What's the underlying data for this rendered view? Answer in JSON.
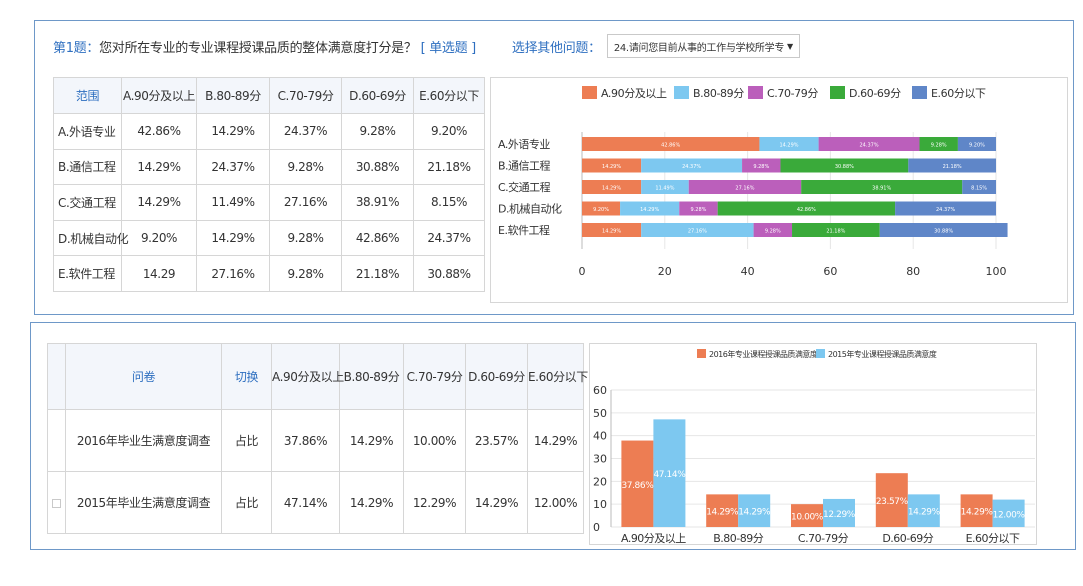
{
  "question": {
    "number": "第1题：",
    "text": "您对所在专业的专业课程授课品质的整体满意度打分是？",
    "type": "[ 单选题 ]",
    "pick_label": "选择其他问题：",
    "selected_question": "24.请问您目前从事的工作与学校所学专",
    "select_caret": "▼"
  },
  "table1": {
    "headers": [
      "范围",
      "A.90分及以上",
      "B.80-89分",
      "C.70-79分",
      "D.60-69分",
      "E.60分以下"
    ],
    "rows": [
      [
        "A.外语专业",
        "42.86%",
        "14.29%",
        "24.37%",
        "9.28%",
        "9.20%"
      ],
      [
        "B.通信工程",
        "14.29%",
        "24.37%",
        "9.28%",
        "30.88%",
        "21.18%"
      ],
      [
        "C.交通工程",
        "14.29%",
        "11.49%",
        "27.16%",
        "38.91%",
        "8.15%"
      ],
      [
        "D.机械自动化",
        "9.20%",
        "14.29%",
        "9.28%",
        "42.86%",
        "24.37%"
      ],
      [
        "E.软件工程",
        "14.29",
        "27.16%",
        "9.28%",
        "21.18%",
        "30.88%"
      ]
    ]
  },
  "table2": {
    "headers": [
      "",
      "问卷",
      "切换",
      "A.90分及以上",
      "B.80-89分",
      "C.70-79分",
      "D.60-69分",
      "E.60分以下"
    ],
    "rows": [
      [
        "",
        "2016年毕业生满意度调查",
        "占比",
        "37.86%",
        "14.29%",
        "10.00%",
        "23.57%",
        "14.29%"
      ],
      [
        "",
        "2015年毕业生满意度调查",
        "占比",
        "47.14%",
        "14.29%",
        "12.29%",
        "14.29%",
        "12.00%"
      ]
    ]
  },
  "chart_data": [
    {
      "type": "bar",
      "orientation": "horizontal",
      "stacked": true,
      "categories": [
        "A.外语专业",
        "B.通信工程",
        "C.交通工程",
        "D.机械自动化",
        "E.软件工程"
      ],
      "series": [
        {
          "name": "A.90分及以上",
          "color": "#ed7d53",
          "values": [
            42.86,
            14.29,
            14.29,
            9.2,
            14.29
          ]
        },
        {
          "name": "B.80-89分",
          "color": "#7dc8f0",
          "values": [
            14.29,
            24.37,
            11.49,
            14.29,
            27.16
          ]
        },
        {
          "name": "C.70-79分",
          "color": "#bb5fbb",
          "values": [
            24.37,
            9.28,
            27.16,
            9.28,
            9.28
          ]
        },
        {
          "name": "D.60-69分",
          "color": "#3aaa3a",
          "values": [
            9.28,
            30.88,
            38.91,
            42.86,
            21.18
          ]
        },
        {
          "name": "E.60分以下",
          "color": "#5f86c8",
          "values": [
            9.2,
            21.18,
            8.15,
            24.37,
            30.88
          ]
        }
      ],
      "xlim": [
        0,
        100
      ],
      "xticks": [
        0,
        20,
        40,
        60,
        80,
        100
      ],
      "grid": true,
      "legend": "top"
    },
    {
      "type": "bar",
      "categories": [
        "A.90分及以上",
        "B.80-89分",
        "C.70-79分",
        "D.60-69分",
        "E.60分以下"
      ],
      "series": [
        {
          "name": "2016年专业课程授课品质满意度",
          "color": "#ed7d53",
          "values": [
            37.86,
            14.29,
            10.0,
            23.57,
            14.29
          ],
          "labels": [
            "37.86%",
            "14.29%",
            "10.00%",
            "23.57%",
            "14.29%"
          ]
        },
        {
          "name": "2015年专业课程授课品质满意度",
          "color": "#7dc8f0",
          "values": [
            47.14,
            14.29,
            12.29,
            14.29,
            12.0
          ],
          "labels": [
            "47.14%",
            "14.29%",
            "12.29%",
            "14.29%",
            "12.00%"
          ]
        }
      ],
      "ylim": [
        0,
        60
      ],
      "yticks": [
        0,
        10,
        20,
        30,
        40,
        50,
        60
      ],
      "grid": true,
      "legend": "top"
    }
  ]
}
